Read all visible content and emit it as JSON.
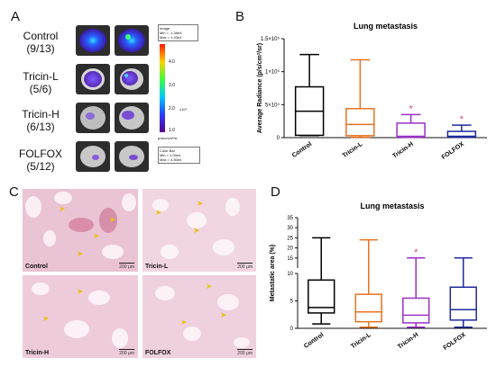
{
  "panels": {
    "A": {
      "letter": "A",
      "groups": [
        {
          "name": "Control",
          "count": "(9/13)"
        },
        {
          "name": "Tricin-L",
          "count": "(5/6)"
        },
        {
          "name": "Tricin-H",
          "count": "(6/13)"
        },
        {
          "name": "FOLFOX",
          "count": "(5/12)"
        }
      ],
      "legend": {
        "image_title": "Image",
        "image_min": "Min = -1.36e4",
        "image_max": "Max = 1.43e4",
        "ticks": [
          "4.0",
          "3.0",
          "2.0",
          "1.0"
        ],
        "unit_exp": "x10⁴",
        "unit": "p/sec/cm²/sr",
        "colorbar_title": "Color Bar",
        "colorbar_min": "Min = 1.00e4",
        "colorbar_max": "Max = 4.50e4"
      }
    },
    "B": {
      "letter": "B"
    },
    "C": {
      "letter": "C",
      "images": [
        {
          "label": "Control",
          "scale": "200 μm"
        },
        {
          "label": "Tricin-L",
          "scale": "200 μm"
        },
        {
          "label": "Tricin-H",
          "scale": "200 μm"
        },
        {
          "label": "FOLFOX",
          "scale": "200 μm"
        }
      ]
    },
    "D": {
      "letter": "D"
    }
  },
  "chart_data": [
    {
      "type": "box",
      "title": "Lung metastasis",
      "ylabel": "Average Radiance (p/s/cm²/sr)",
      "categories": [
        "Control",
        "Tricin-L",
        "Tricin-H",
        "FOLFOX"
      ],
      "yticks": [
        "0",
        "5×10⁴",
        "1×10⁵",
        "1.5×10⁵"
      ],
      "ylim": [
        0,
        150000
      ],
      "colors": [
        "#000000",
        "#e8731f",
        "#9b30c8",
        "#1f2a9c"
      ],
      "significance": [
        "",
        "",
        "*",
        "*"
      ],
      "significance_color": "#e0457b",
      "boxes": [
        {
          "min": 3000,
          "q1": 3500,
          "median": 40000,
          "q3": 77000,
          "max": 126000
        },
        {
          "min": 500,
          "q1": 3000,
          "median": 20000,
          "q3": 44000,
          "max": 118000
        },
        {
          "min": 500,
          "q1": 1000,
          "median": 2000,
          "q3": 22000,
          "max": 35000
        },
        {
          "min": 500,
          "q1": 1000,
          "median": 2000,
          "q3": 9500,
          "max": 19000
        }
      ]
    },
    {
      "type": "box",
      "title": "Lung metastasis",
      "ylabel": "Metastatic area (%)",
      "categories": [
        "Control",
        "Tricin-L",
        "Tricin-H",
        "FOLFOX"
      ],
      "yticks_lower": [
        "0",
        "5",
        "10"
      ],
      "yticks_upper": [
        "15",
        "20",
        "25",
        "30",
        "35"
      ],
      "axis_break": true,
      "colors": [
        "#000000",
        "#e8731f",
        "#9b30c8",
        "#1f2a9c"
      ],
      "significance": [
        "",
        "",
        "*",
        ""
      ],
      "significance_color": "#e0457b",
      "boxes": [
        {
          "min": 0.8,
          "q1": 2.8,
          "median": 3.8,
          "q3": 8.8,
          "max": 25
        },
        {
          "min": 0.2,
          "q1": 1.2,
          "median": 3.0,
          "q3": 6.2,
          "max": 24
        },
        {
          "min": 0.2,
          "q1": 1.0,
          "median": 2.4,
          "q3": 5.5,
          "max": 15
        },
        {
          "min": 0.2,
          "q1": 1.5,
          "median": 3.4,
          "q3": 7.5,
          "max": 15
        }
      ]
    }
  ]
}
